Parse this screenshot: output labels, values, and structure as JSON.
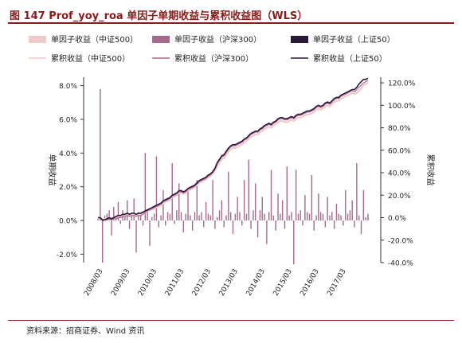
{
  "header": {
    "title": "图 147 Prof_yoy_roa 单因子单期收益与累积收益图（WLS）"
  },
  "footer": {
    "source": "资料来源：招商证券、Wind 资讯"
  },
  "colors": {
    "bar_zz500": "#f0c9c9",
    "bar_hs300": "#a36a8c",
    "bar_sz50": "#2a1a3a",
    "line_zz500": "#f0c9c9",
    "line_hs300": "#b06a94",
    "line_sz50": "#2a1a3a"
  },
  "chart_data": {
    "type": "bar",
    "title": "",
    "ylabel": "单期收益",
    "y2label": "累积收益",
    "ylim": [
      -2.5,
      8.5
    ],
    "y2lim": [
      -40,
      125
    ],
    "yticks": [
      "-2.0%",
      "0.0%",
      "2.0%",
      "4.0%",
      "6.0%",
      "8.0%"
    ],
    "y2ticks": [
      "-40.0%",
      "-20.0%",
      "0.0%",
      "20.0%",
      "40.0%",
      "60.0%",
      "80.0%",
      "100.0%",
      "120.0%"
    ],
    "xticks": [
      "2008/03",
      "2009/03",
      "2010/03",
      "2011/03",
      "2012/03",
      "2013/03",
      "2014/03",
      "2015/03",
      "2016/03",
      "2017/03"
    ],
    "legend": {
      "placement": "top",
      "entries": [
        "单因子收益（中证500）",
        "单因子收益（沪深300）",
        "单因子收益（上证50）",
        "累积收益（中证500）",
        "累积收益（沪深300）",
        "累积收益（上证50）"
      ]
    },
    "x_start": "2008/03",
    "x_step": "1 month",
    "series": [
      {
        "name": "单因子收益（沪深300）",
        "kind": "bar",
        "axis": "left",
        "values": [
          0.1,
          7.8,
          -2.5,
          0.3,
          0.4,
          0.6,
          -0.9,
          0.8,
          0.2,
          1.1,
          -0.2,
          0.6,
          0.4,
          1.2,
          -0.5,
          0.3,
          1.3,
          -1.9,
          0.5,
          0.4,
          -0.3,
          4.0,
          0.6,
          -1.5,
          0.2,
          0.4,
          3.8,
          -0.4,
          0.3,
          1.8,
          -0.3,
          0.5,
          0.4,
          3.4,
          -0.2,
          0.6,
          2.2,
          0.5,
          -0.7,
          0.4,
          1.8,
          0.3,
          -0.6,
          0.5,
          2.4,
          0.3,
          0.5,
          -0.4,
          1.1,
          0.4,
          0.3,
          2.4,
          -0.5,
          0.2,
          0.6,
          1.2,
          -0.4,
          0.3,
          2.9,
          0.5,
          -0.8,
          0.4,
          1.4,
          0.5,
          -0.3,
          2.4,
          0.4,
          3.6,
          -0.5,
          0.6,
          2.2,
          -1.0,
          0.6,
          1.4,
          0.4,
          -1.4,
          0.5,
          3.0,
          0.3,
          -0.6,
          1.6,
          0.4,
          1.2,
          -0.5,
          3.2,
          0.3,
          0.5,
          -2.6,
          3.0,
          0.4,
          0.6,
          -0.3,
          1.5,
          0.5,
          0.4,
          2.7,
          -0.6,
          0.3,
          1.6,
          0.5,
          0.4,
          -0.4,
          1.4,
          0.3,
          0.5,
          -0.5,
          1.0,
          0.4,
          0.3,
          -0.3,
          1.8,
          0.4,
          0.6,
          1.2,
          -0.4,
          3.4,
          0.3,
          -0.8,
          1.8,
          0.2,
          0.4
        ]
      },
      {
        "name": "累积收益（中证500）",
        "kind": "line",
        "axis": "right",
        "values": [
          0,
          0,
          -2,
          -1,
          -1,
          0,
          -1,
          0,
          0,
          1,
          1,
          2,
          2,
          3,
          2,
          3,
          3,
          2,
          3,
          3,
          4,
          5,
          6,
          7,
          7,
          8,
          9,
          10,
          11,
          13,
          14,
          15,
          16,
          18,
          19,
          20,
          22,
          22,
          21,
          22,
          24,
          25,
          26,
          27,
          29,
          31,
          32,
          33,
          34,
          36,
          37,
          39,
          42,
          46,
          49,
          52,
          53,
          56,
          59,
          61,
          62,
          62,
          63,
          64,
          65,
          67,
          68,
          70,
          72,
          73,
          74,
          74,
          76,
          77,
          79,
          80,
          81,
          80,
          82,
          83,
          85,
          86,
          86,
          85,
          85,
          86,
          87,
          86,
          88,
          89,
          89,
          90,
          91,
          92,
          92,
          93,
          94,
          96,
          97,
          96,
          97,
          99,
          100,
          99,
          101,
          103,
          104,
          104,
          106,
          107,
          108,
          109,
          110,
          111,
          110,
          111,
          113,
          115,
          118,
          119,
          120
        ]
      },
      {
        "name": "累积收益（沪深300）",
        "kind": "line",
        "axis": "right",
        "values": [
          0,
          0,
          -3,
          -2,
          -2,
          -1,
          -2,
          -1,
          -1,
          0,
          0,
          1,
          1,
          2,
          1,
          2,
          2,
          1,
          2,
          2,
          3,
          5,
          6,
          7,
          8,
          9,
          10,
          11,
          12,
          14,
          15,
          16,
          17,
          19,
          20,
          21,
          23,
          23,
          22,
          23,
          25,
          26,
          27,
          28,
          30,
          32,
          33,
          34,
          35,
          37,
          38,
          40,
          43,
          48,
          51,
          54,
          55,
          58,
          61,
          63,
          64,
          64,
          65,
          66,
          67,
          69,
          70,
          72,
          74,
          75,
          76,
          76,
          78,
          79,
          81,
          82,
          83,
          82,
          84,
          85,
          87,
          88,
          88,
          87,
          87,
          88,
          89,
          88,
          90,
          91,
          91,
          92,
          93,
          94,
          94,
          95,
          96,
          98,
          99,
          98,
          99,
          101,
          102,
          101,
          103,
          105,
          106,
          106,
          108,
          109,
          110,
          111,
          112,
          113,
          112,
          114,
          116,
          118,
          120,
          121,
          122
        ]
      },
      {
        "name": "累积收益（上证50）",
        "kind": "line",
        "axis": "right",
        "values": [
          0,
          0,
          -2,
          -2,
          -1,
          0,
          -1,
          0,
          1,
          2,
          2,
          3,
          3,
          4,
          3,
          4,
          4,
          3,
          4,
          4,
          5,
          6,
          7,
          8,
          9,
          10,
          11,
          12,
          13,
          15,
          16,
          17,
          18,
          20,
          21,
          22,
          24,
          24,
          23,
          24,
          26,
          27,
          28,
          29,
          31,
          33,
          34,
          35,
          36,
          38,
          39,
          41,
          44,
          49,
          52,
          55,
          56,
          59,
          62,
          64,
          65,
          65,
          66,
          67,
          68,
          70,
          71,
          73,
          75,
          76,
          77,
          77,
          79,
          80,
          82,
          83,
          84,
          83,
          85,
          86,
          88,
          89,
          89,
          88,
          88,
          89,
          90,
          89,
          91,
          92,
          92,
          93,
          94,
          95,
          95,
          96,
          97,
          99,
          100,
          99,
          100,
          102,
          103,
          102,
          104,
          106,
          107,
          107,
          109,
          110,
          111,
          112,
          113,
          114,
          114,
          116,
          119,
          121,
          123,
          123,
          124
        ]
      }
    ]
  }
}
